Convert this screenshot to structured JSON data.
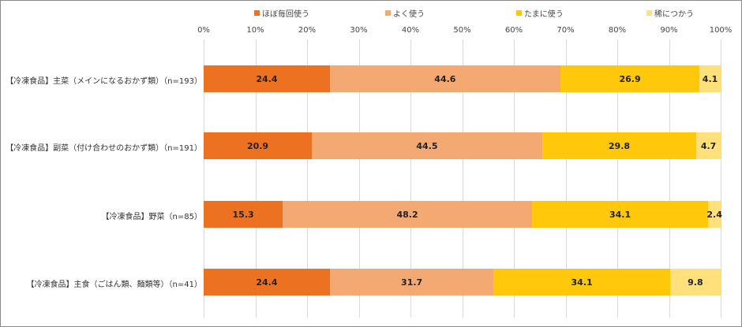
{
  "chart_data": {
    "type": "bar",
    "orientation": "horizontal",
    "stacked": "percent",
    "title": "",
    "xlabel": "",
    "ylabel": "",
    "xlim": [
      0,
      100
    ],
    "x_ticks": [
      "0%",
      "10%",
      "20%",
      "30%",
      "40%",
      "50%",
      "60%",
      "70%",
      "80%",
      "90%",
      "100%"
    ],
    "grid": true,
    "legend_position": "top",
    "categories": [
      "【冷凍食品】主菜（メインになるおかず類）（n=193）",
      "【冷凍食品】副菜（付け合わせのおかず類）（n=191）",
      "【冷凍食品】野菜（n=85）",
      "【冷凍食品】主食（ごはん類、麺類等）（n=41）"
    ],
    "series": [
      {
        "name": "ほぼ毎回使う",
        "color": "#ec7222",
        "values": [
          24.4,
          20.9,
          15.3,
          24.4
        ]
      },
      {
        "name": "よく使う",
        "color": "#f4a973",
        "values": [
          44.6,
          44.5,
          48.2,
          31.7
        ]
      },
      {
        "name": "たまに使う",
        "color": "#ffc80a",
        "values": [
          26.9,
          29.8,
          34.1,
          34.1
        ]
      },
      {
        "name": "稀につかう",
        "color": "#ffe07a",
        "values": [
          4.1,
          4.7,
          2.4,
          9.8
        ]
      }
    ]
  }
}
